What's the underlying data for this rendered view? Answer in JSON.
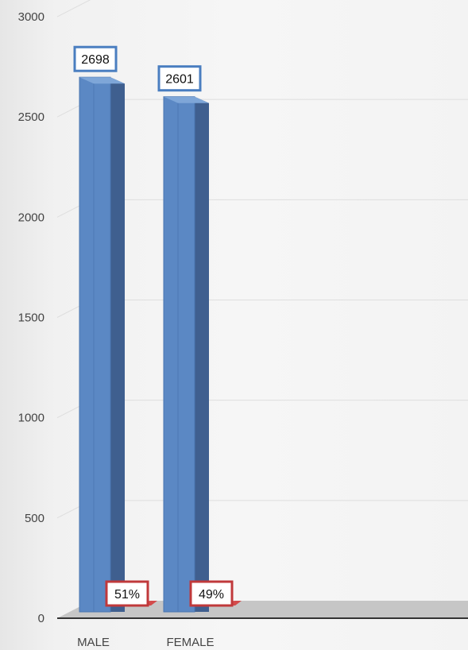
{
  "chart_data": {
    "type": "bar",
    "style": "3d-column",
    "categories": [
      "MALE",
      "FEMALE"
    ],
    "values": [
      2698,
      2601
    ],
    "percent_labels": [
      "51%",
      "49%"
    ],
    "title": "",
    "xlabel": "",
    "ylabel": "",
    "ylim": [
      0,
      3000
    ],
    "yticks": [
      0,
      500,
      1000,
      1500,
      2000,
      2500,
      3000
    ],
    "grid": true,
    "legend": "none",
    "colors": {
      "bar_front": "#5b88c4",
      "bar_side": "#3f5f8f",
      "bar_top": "#7ea6d8",
      "value_label_border": "#4a7ec0",
      "percent_label_border": "#c0393b",
      "floor": "#c6c6c6",
      "axis": "#333333",
      "grid": "#dedede"
    }
  }
}
